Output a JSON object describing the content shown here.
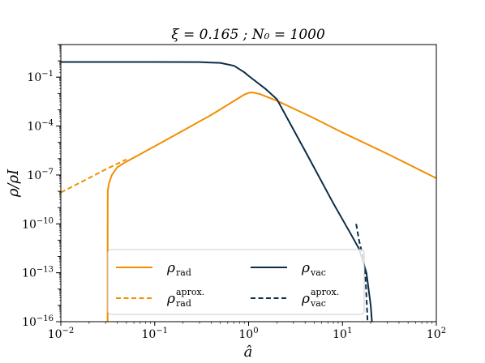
{
  "chart_data": {
    "type": "line",
    "title": "ξ = 0.165 ; N₀ = 1000",
    "xlabel": "â",
    "ylabel": "ρ/ρI",
    "xscale": "log",
    "yscale": "log",
    "xlim": [
      0.01,
      100
    ],
    "ylim": [
      1e-16,
      10
    ],
    "xticks": [
      {
        "value": 0.01,
        "base": "10",
        "exp": "−2"
      },
      {
        "value": 0.1,
        "base": "10",
        "exp": "−1"
      },
      {
        "value": 1,
        "base": "10",
        "exp": "0"
      },
      {
        "value": 10,
        "base": "10",
        "exp": "1"
      },
      {
        "value": 100,
        "base": "10",
        "exp": "2"
      }
    ],
    "yticks": [
      {
        "value": 0.1,
        "base": "10",
        "exp": "−1"
      },
      {
        "value": 0.0001,
        "base": "10",
        "exp": "−4"
      },
      {
        "value": 1e-07,
        "base": "10",
        "exp": "−7"
      },
      {
        "value": 1e-10,
        "base": "10",
        "exp": "−10"
      },
      {
        "value": 1e-13,
        "base": "10",
        "exp": "−13"
      },
      {
        "value": 1e-16,
        "base": "10",
        "exp": "−16"
      }
    ],
    "legend_position": "lower-center",
    "series": [
      {
        "key": "rad",
        "name": "ρrad",
        "symbol": "ρ",
        "sup": "",
        "sub": "rad",
        "color": "#f28e00",
        "style": "solid",
        "points": [
          [
            0.0315,
            1e-16
          ],
          [
            0.03151,
            1e-12
          ],
          [
            0.0316,
            1e-08
          ],
          [
            0.0325,
            3e-08
          ],
          [
            0.035,
            1e-07
          ],
          [
            0.04,
            3e-07
          ],
          [
            0.05,
            6.6e-07
          ],
          [
            0.1,
            5.8e-06
          ],
          [
            0.2,
            5.2e-05
          ],
          [
            0.4,
            0.00048
          ],
          [
            0.7,
            0.0035
          ],
          [
            0.9,
            0.0085
          ],
          [
            1.0,
            0.011
          ],
          [
            1.1,
            0.0115
          ],
          [
            1.3,
            0.0095
          ],
          [
            2,
            0.0036
          ],
          [
            5,
            0.0003
          ],
          [
            10,
            4e-05
          ],
          [
            30,
            2e-06
          ],
          [
            100,
            6.3e-08
          ]
        ]
      },
      {
        "key": "rad_approx",
        "name": "ρrad aprox.",
        "symbol": "ρ",
        "sup": "aprox.",
        "sub": "rad",
        "color": "#f28e00",
        "style": "dashed",
        "points": [
          [
            0.01,
            8.4e-09
          ],
          [
            0.02,
            6.5e-08
          ],
          [
            0.03,
            2.2e-07
          ],
          [
            0.05,
            9e-07
          ]
        ]
      },
      {
        "key": "vac",
        "name": "ρvac",
        "symbol": "ρ",
        "sup": "",
        "sub": "vac",
        "color": "#0c2d48",
        "style": "solid",
        "points": [
          [
            0.01,
            0.85
          ],
          [
            0.1,
            0.85
          ],
          [
            0.3,
            0.84
          ],
          [
            0.5,
            0.75
          ],
          [
            0.7,
            0.5
          ],
          [
            0.9,
            0.2
          ],
          [
            1.0,
            0.12
          ],
          [
            1.5,
            0.02
          ],
          [
            2,
            0.0045
          ],
          [
            4,
            3e-06
          ],
          [
            8,
            1.8e-09
          ],
          [
            12,
            3e-11
          ],
          [
            15,
            3e-12
          ],
          [
            18,
            1e-13
          ],
          [
            20,
            1e-15
          ],
          [
            20.6,
            1e-16
          ]
        ]
      },
      {
        "key": "vac_approx",
        "name": "ρvac aprox.",
        "symbol": "ρ",
        "sup": "aprox.",
        "sub": "vac",
        "color": "#0c2d48",
        "style": "dashed",
        "points": [
          [
            14,
            1e-10
          ],
          [
            15,
            1e-11
          ],
          [
            16.5,
            1e-12
          ],
          [
            17.5,
            1e-13
          ],
          [
            18.2,
            1e-15
          ],
          [
            18.5,
            1e-16
          ]
        ]
      }
    ]
  }
}
